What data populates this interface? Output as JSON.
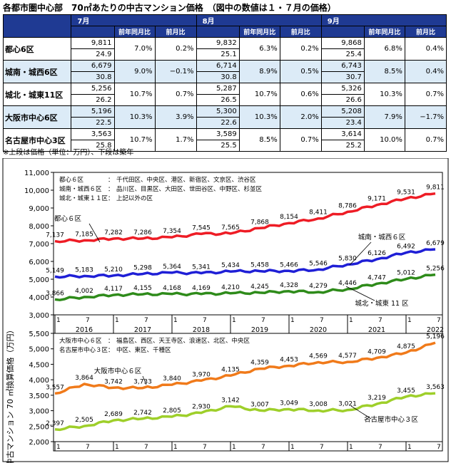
{
  "title": "各都市圏中心部　70㎡あたりの中古マンション価格　（図中の数値は１・７月の価格）",
  "table": {
    "months": [
      "7月",
      "8月",
      "9月"
    ],
    "sub_headers": [
      "前年同月比",
      "前月比"
    ],
    "rows": [
      {
        "name": "都心6区",
        "cells": [
          [
            "9,811",
            "24.9",
            "7.0%",
            "0.2%"
          ],
          [
            "9,832",
            "25.1",
            "6.3%",
            "0.2%"
          ],
          [
            "9,868",
            "25.4",
            "6.8%",
            "0.4%"
          ]
        ]
      },
      {
        "name": "城南・城西6区",
        "cells": [
          [
            "6,679",
            "30.8",
            "9.0%",
            "−0.1%"
          ],
          [
            "6,714",
            "30.8",
            "8.9%",
            "0.5%"
          ],
          [
            "6,743",
            "30.7",
            "8.5%",
            "0.4%"
          ]
        ]
      },
      {
        "name": "城北・城東11区",
        "cells": [
          [
            "5,256",
            "26.2",
            "10.7%",
            "0.7%"
          ],
          [
            "5,287",
            "26.5",
            "10.7%",
            "0.6%"
          ],
          [
            "5,326",
            "26.6",
            "10.3%",
            "0.7%"
          ]
        ]
      },
      {
        "name": "大阪市中心6区",
        "cells": [
          [
            "5,196",
            "22.5",
            "10.3%",
            "3.9%"
          ],
          [
            "5,300",
            "22.6",
            "10.3%",
            "2.0%"
          ],
          [
            "5,208",
            "23.4",
            "7.9%",
            "−1.7%"
          ]
        ]
      },
      {
        "name": "名古屋市中心3区",
        "cells": [
          [
            "3,563",
            "25.8",
            "10.7%",
            "1.7%"
          ],
          [
            "3,589",
            "25.5",
            "8.5%",
            "0.7%"
          ],
          [
            "3,614",
            "25.2",
            "10.0%",
            "0.7%"
          ]
        ]
      }
    ]
  },
  "note": "※上段は価格（単位：万円）、下段は築年",
  "chart_data": {
    "type": "line",
    "ylabel": "中古マンション 70 ㎡換算価格（万円）",
    "x_tick_labels": [
      "1",
      "7",
      "1",
      "7",
      "1",
      "7",
      "1",
      "7",
      "1",
      "7",
      "1",
      "7",
      "1",
      "7"
    ],
    "years": [
      "2016",
      "2017",
      "2018",
      "2019",
      "2020",
      "2021",
      "2022"
    ],
    "colors": {
      "tokyo_central": "#ee1c25",
      "tokyo_south_west": "#1f1fd6",
      "tokyo_north_east": "#2e8b1a",
      "osaka": "#f07a1a",
      "nagoya": "#9ecf2a"
    },
    "panels": [
      {
        "ylim": [
          3000,
          11000
        ],
        "yticks": [
          "3,000",
          "4,000",
          "5,000",
          "6,000",
          "7,000",
          "8,000",
          "9,000",
          "10,000",
          "11,000"
        ],
        "legend": [
          [
            "都心６区",
            "：",
            "千代田区、中央区、港区、新宿区、文京区、渋谷区"
          ],
          [
            "城南・城西６区",
            "：",
            "品川区、目黒区、大田区、世田谷区、中野区、杉並区"
          ],
          [
            "城北・城東１１区",
            "：",
            "上記以外の区"
          ]
        ],
        "series": [
          {
            "key": "tokyo_central",
            "label": "都心６区",
            "points": [
              [
                0,
                7137
              ],
              [
                6,
                7185
              ],
              [
                12,
                7282
              ],
              [
                18,
                7286
              ],
              [
                24,
                7354
              ],
              [
                30,
                7545
              ],
              [
                36,
                7565
              ],
              [
                42,
                7868
              ],
              [
                48,
                8154
              ],
              [
                54,
                8411
              ],
              [
                60,
                8786
              ],
              [
                66,
                9171
              ],
              [
                72,
                9531
              ],
              [
                78,
                9811
              ]
            ],
            "labels": [
              "7,137",
              "7,185",
              "7,282",
              "7,286",
              "7,354",
              "7,545",
              "7,565",
              "7,868",
              "8,154",
              "8,411",
              "8,786",
              "9,171",
              "9,531",
              "9,811"
            ]
          },
          {
            "key": "tokyo_south_west",
            "label": "城南・城西６区",
            "points": [
              [
                0,
                5149
              ],
              [
                6,
                5183
              ],
              [
                12,
                5210
              ],
              [
                18,
                5298
              ],
              [
                24,
                5364
              ],
              [
                30,
                5341
              ],
              [
                36,
                5434
              ],
              [
                42,
                5458
              ],
              [
                48,
                5466
              ],
              [
                54,
                5546
              ],
              [
                60,
                5830
              ],
              [
                66,
                6126
              ],
              [
                72,
                6492
              ],
              [
                78,
                6679
              ]
            ],
            "labels": [
              "5,149",
              "5,183",
              "5,210",
              "5,298",
              "5,364",
              "5,341",
              "5,434",
              "5,458",
              "5,466",
              "5,546",
              "5,830",
              "6,126",
              "6,492",
              "6,679"
            ]
          },
          {
            "key": "tokyo_north_east",
            "label": "城北・城東 11 区",
            "points": [
              [
                0,
                3866
              ],
              [
                6,
                4002
              ],
              [
                12,
                4117
              ],
              [
                18,
                4155
              ],
              [
                24,
                4168
              ],
              [
                30,
                4169
              ],
              [
                36,
                4210
              ],
              [
                42,
                4245
              ],
              [
                48,
                4328
              ],
              [
                54,
                4279
              ],
              [
                60,
                4446
              ],
              [
                66,
                4747
              ],
              [
                72,
                5012
              ],
              [
                78,
                5256
              ]
            ],
            "labels": [
              "3,866",
              "4,002",
              "4,117",
              "4,155",
              "4,168",
              "4,169",
              "4,210",
              "4,245",
              "4,328",
              "4,279",
              "4,446",
              "4,747",
              "5,012",
              "5,256"
            ]
          }
        ]
      },
      {
        "ylim": [
          2000,
          5500
        ],
        "yticks": [
          "2,000",
          "2,500",
          "3,000",
          "3,500",
          "4,000",
          "4,500",
          "5,000",
          "5,500"
        ],
        "legend": [
          [
            "大阪市中心６区",
            "：",
            "福島区、西区、天王寺区、浪速区、北区、中央区"
          ],
          [
            "名古屋市中心３区",
            "：",
            "中区、東区、千種区"
          ]
        ],
        "series": [
          {
            "key": "osaka",
            "label": "大阪市中心６区",
            "points": [
              [
                0,
                3557
              ],
              [
                6,
                3864
              ],
              [
                12,
                3742
              ],
              [
                18,
                3733
              ],
              [
                24,
                3840
              ],
              [
                30,
                3970
              ],
              [
                36,
                4135
              ],
              [
                42,
                4359
              ],
              [
                48,
                4453
              ],
              [
                54,
                4569
              ],
              [
                60,
                4577
              ],
              [
                66,
                4709
              ],
              [
                72,
                4875
              ],
              [
                78,
                5196
              ]
            ],
            "labels": [
              "3,557",
              "3,864",
              "3,742",
              "3,733",
              "3,840",
              "3,970",
              "4,135",
              "4,359",
              "4,453",
              "4,569",
              "4,577",
              "4,709",
              "4,875",
              "5,196"
            ]
          },
          {
            "key": "nagoya",
            "label": "名古屋市中心３区",
            "points": [
              [
                0,
                2397
              ],
              [
                6,
                2505
              ],
              [
                12,
                2689
              ],
              [
                18,
                2742
              ],
              [
                24,
                2805
              ],
              [
                30,
                2930
              ],
              [
                36,
                3142
              ],
              [
                42,
                3007
              ],
              [
                48,
                3049
              ],
              [
                54,
                3008
              ],
              [
                60,
                3021
              ],
              [
                66,
                3219
              ],
              [
                72,
                3455
              ],
              [
                78,
                3563
              ]
            ],
            "labels": [
              "2,397",
              "2,505",
              "2,689",
              "2,742",
              "2,805",
              "2,930",
              "3,142",
              "3,007",
              "3,049",
              "3,008",
              "3,021",
              "3,219",
              "3,455",
              "3,563"
            ]
          }
        ]
      }
    ]
  }
}
